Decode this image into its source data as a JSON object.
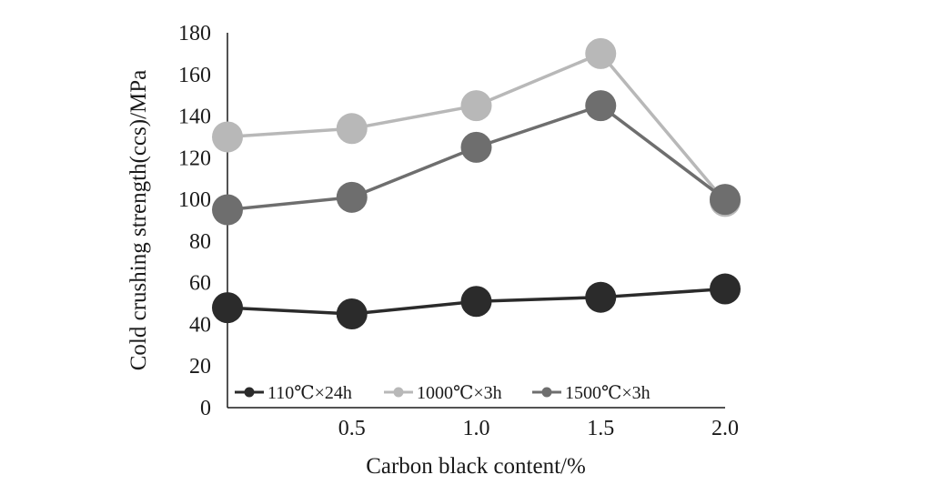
{
  "chart_data": {
    "type": "line",
    "title": "",
    "xlabel": "Carbon black content/%",
    "ylabel": "Cold crushing strength(ccs)/MPa",
    "x": [
      0,
      0.5,
      1.0,
      1.5,
      2.0
    ],
    "x_tick_labels": [
      "",
      "0.5",
      "1.0",
      "1.5",
      "2.0"
    ],
    "xlim": [
      0,
      2.0
    ],
    "ylim": [
      0,
      180
    ],
    "y_ticks": [
      "0",
      "20",
      "40",
      "60",
      "80",
      "100",
      "120",
      "140",
      "160",
      "180"
    ],
    "grid": false,
    "legend_position": "bottom-left",
    "series": [
      {
        "name": "110℃×24h",
        "color": "#2b2b2b",
        "values": [
          48,
          45,
          51,
          53,
          57
        ]
      },
      {
        "name": "1000℃×3h",
        "color": "#b8b8b8",
        "values": [
          130,
          134,
          145,
          170,
          99
        ]
      },
      {
        "name": "1500℃×3h",
        "color": "#6e6e6e",
        "values": [
          95,
          101,
          125,
          145,
          100
        ]
      }
    ]
  }
}
